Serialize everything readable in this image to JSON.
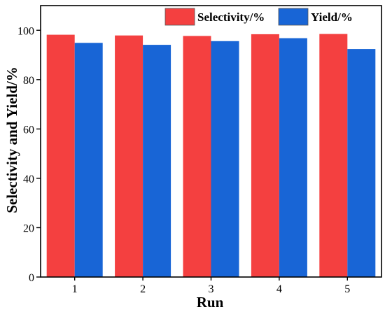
{
  "colors": {
    "selectivity": "#f44040",
    "yield": "#1865d6"
  },
  "chart_data": {
    "type": "bar",
    "title": "",
    "xlabel": "Run",
    "ylabel": "Selectivity and Yield/%",
    "ylim": [
      0,
      110
    ],
    "yticks": [
      0,
      20,
      40,
      60,
      80,
      100
    ],
    "categories": [
      "1",
      "2",
      "3",
      "4",
      "5"
    ],
    "series": [
      {
        "name": "Selectivity/%",
        "values": [
          98.2,
          97.9,
          97.7,
          98.4,
          98.5
        ]
      },
      {
        "name": "Yield/%",
        "values": [
          94.9,
          94.1,
          95.6,
          96.8,
          92.4
        ]
      }
    ],
    "legend": "top-right",
    "grid": false
  }
}
